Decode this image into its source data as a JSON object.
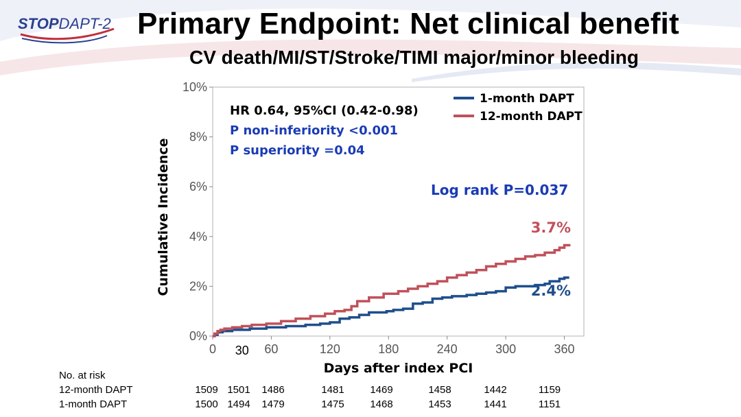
{
  "header": {
    "logo_bold": "STOP",
    "logo_rest": "DAPT-2",
    "title": "Primary Endpoint: Net clinical benefit",
    "subtitle": "CV death/MI/ST/Stroke/TIMI major/minor bleeding"
  },
  "colors": {
    "one_month": "#1f4e8c",
    "twelve_month": "#c0505a",
    "stats_blue": "#1a3bb5",
    "text": "#000000"
  },
  "chart_data": {
    "type": "line",
    "xlabel": "Days after index PCI",
    "ylabel": "Cumulative Incidence",
    "x_ticks": [
      0,
      60,
      120,
      180,
      240,
      300,
      360
    ],
    "x_tick_labels": [
      "0",
      "60",
      "120",
      "180",
      "240",
      "300",
      "360"
    ],
    "extra_x_tick": {
      "value": 30,
      "label": "30"
    },
    "y_ticks": [
      0,
      2,
      4,
      6,
      8,
      10
    ],
    "y_tick_labels": [
      "0%",
      "2%",
      "4%",
      "6%",
      "8%",
      "10%"
    ],
    "xlim": [
      0,
      380
    ],
    "ylim": [
      0,
      10
    ],
    "legend_position": "top-right",
    "series": [
      {
        "name": "1-month DAPT",
        "color": "#1f4e8c",
        "x": [
          0,
          2,
          5,
          10,
          20,
          38,
          55,
          75,
          95,
          110,
          120,
          130,
          140,
          150,
          160,
          178,
          185,
          195,
          205,
          215,
          225,
          235,
          245,
          260,
          270,
          280,
          290,
          300,
          310,
          320,
          330,
          335,
          340,
          345,
          355,
          360,
          365
        ],
        "y": [
          0,
          0.05,
          0.15,
          0.2,
          0.25,
          0.3,
          0.35,
          0.4,
          0.45,
          0.5,
          0.55,
          0.7,
          0.75,
          0.85,
          0.95,
          1.0,
          1.05,
          1.1,
          1.3,
          1.35,
          1.5,
          1.55,
          1.6,
          1.65,
          1.7,
          1.75,
          1.8,
          1.95,
          2.0,
          2.0,
          2.05,
          2.05,
          2.1,
          2.2,
          2.3,
          2.35,
          2.35
        ]
      },
      {
        "name": "12-month DAPT",
        "color": "#c0505a",
        "x": [
          0,
          2,
          5,
          8,
          12,
          20,
          30,
          40,
          55,
          70,
          85,
          100,
          115,
          125,
          135,
          142,
          148,
          160,
          175,
          190,
          200,
          210,
          220,
          230,
          240,
          250,
          260,
          270,
          280,
          290,
          300,
          310,
          320,
          330,
          340,
          350,
          355,
          360,
          365
        ],
        "y": [
          0,
          0.1,
          0.2,
          0.25,
          0.3,
          0.35,
          0.4,
          0.45,
          0.5,
          0.6,
          0.7,
          0.8,
          0.9,
          1.0,
          1.05,
          1.2,
          1.4,
          1.55,
          1.7,
          1.8,
          1.9,
          2.0,
          2.1,
          2.2,
          2.35,
          2.45,
          2.55,
          2.65,
          2.8,
          2.9,
          3.0,
          3.1,
          3.2,
          3.25,
          3.35,
          3.45,
          3.55,
          3.65,
          3.7
        ]
      }
    ],
    "annotations": {
      "hr": "HR 0.64, 95%CI (0.42-0.98)",
      "p_noninf": "P non-inferiority <0.001",
      "p_sup": "P superiority =0.04",
      "logrank": "Log rank P=0.037",
      "end_12m": "3.7%",
      "end_1m": "2.4%"
    }
  },
  "at_risk": {
    "header": "No. at risk",
    "days": [
      0,
      30,
      60,
      120,
      180,
      240,
      300,
      360
    ],
    "rows": [
      {
        "label": "12-month DAPT",
        "values": [
          "1509",
          "1501",
          "1486",
          "1481",
          "1469",
          "1458",
          "1442",
          "1159"
        ]
      },
      {
        "label": "1-month DAPT",
        "values": [
          "1500",
          "1494",
          "1479",
          "1475",
          "1468",
          "1453",
          "1441",
          "1151"
        ]
      }
    ]
  }
}
